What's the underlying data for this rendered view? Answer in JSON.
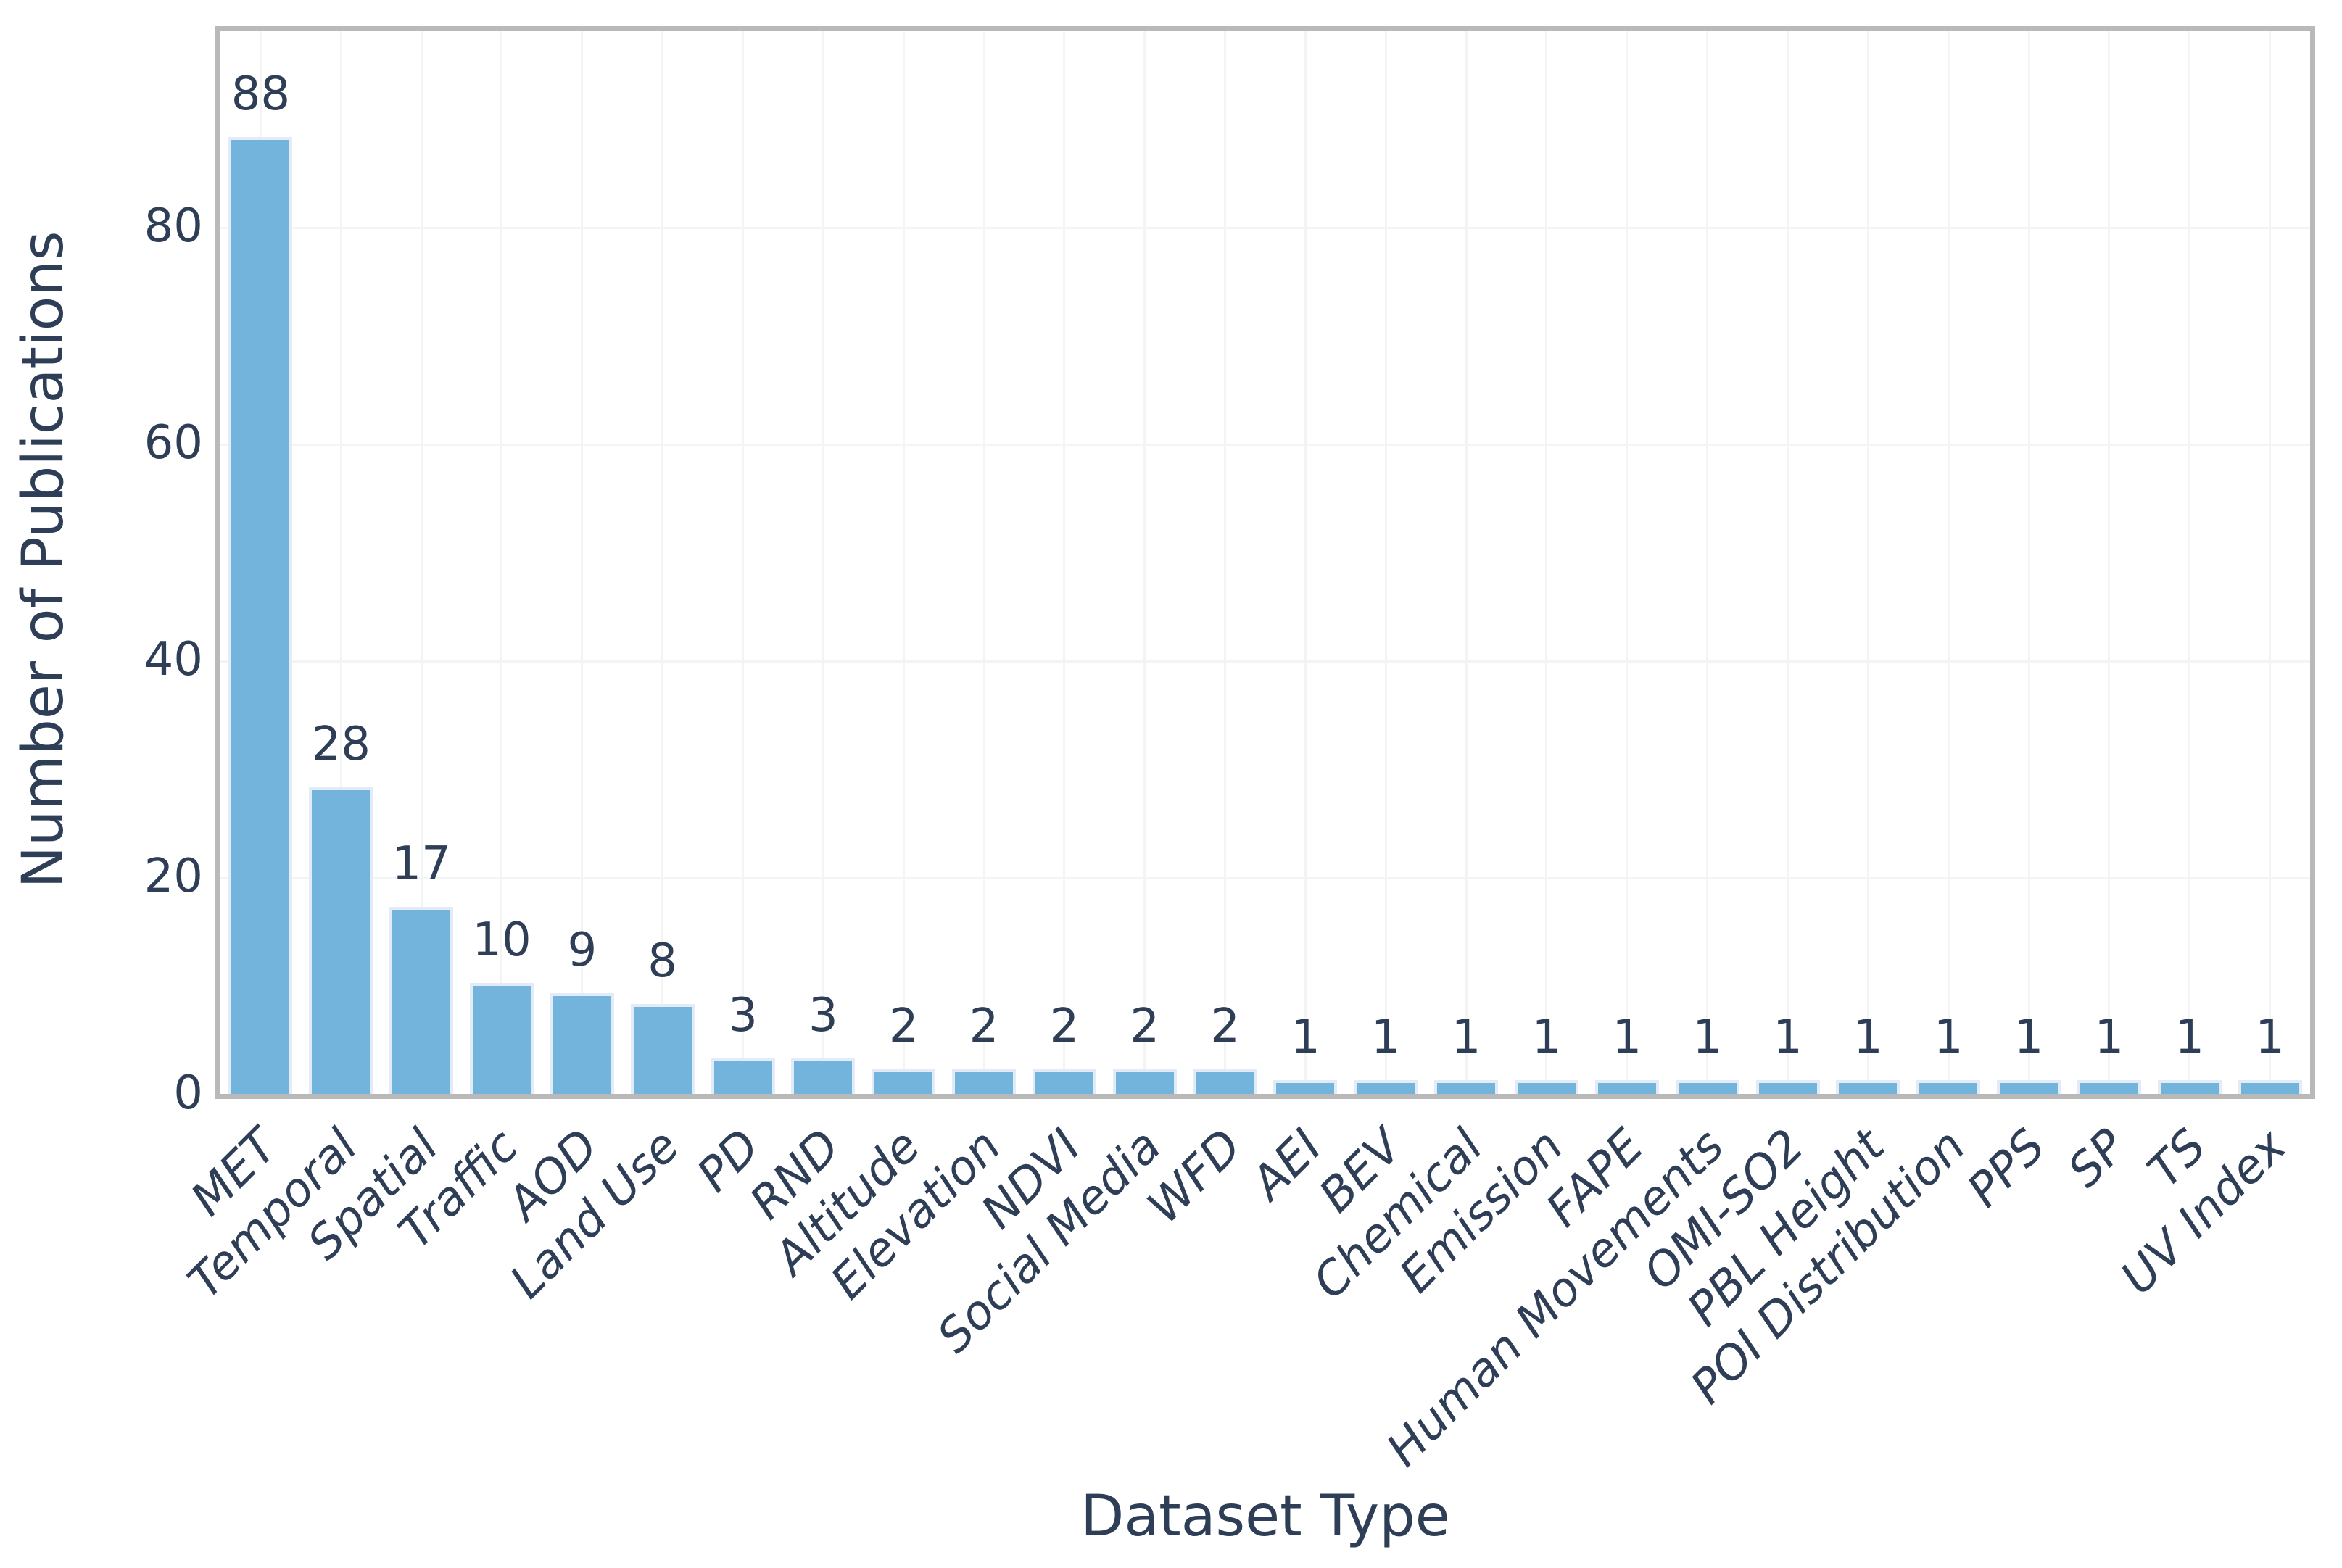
{
  "figure": {
    "background": "#ffffff",
    "frame_color": "#b9b9b9",
    "grid_color": "#f3f4f4",
    "bar_fill": "#72b4db",
    "bar_edge": "#e2ebf6",
    "text_color": "#2d3e56"
  },
  "chart_data": {
    "type": "bar",
    "title": "",
    "xlabel": "Dataset Type",
    "ylabel": "Number of Publications",
    "categories": [
      "MET",
      "Temporal",
      "Spatial",
      "Traffic",
      "AOD",
      "Land Use",
      "PD",
      "RND",
      "Altitude",
      "Elevation",
      "NDVI",
      "Social Media",
      "WFD",
      "AEI",
      "BEV",
      "Chemical",
      "Emission",
      "FAPE",
      "Human Movements",
      "OMI-SO2",
      "PBL Height",
      "POI Distribution",
      "PPS",
      "SP",
      "TS",
      "UV Index"
    ],
    "values": [
      88,
      28,
      17,
      10,
      9,
      8,
      3,
      3,
      2,
      2,
      2,
      2,
      2,
      1,
      1,
      1,
      1,
      1,
      1,
      1,
      1,
      1,
      1,
      1,
      1,
      1
    ],
    "bar_value_labels": [
      "88",
      "28",
      "17",
      "10",
      "9",
      "8",
      "3",
      "3",
      "2",
      "2",
      "2",
      "2",
      "2",
      "1",
      "1",
      "1",
      "1",
      "1",
      "1",
      "1",
      "1",
      "1",
      "1",
      "1",
      "1",
      "1"
    ],
    "y_ticks": [
      0,
      20,
      40,
      60,
      80
    ],
    "ylim": [
      0,
      99
    ],
    "grid": true,
    "legend": false,
    "x_tick_rotation_deg": 45
  }
}
